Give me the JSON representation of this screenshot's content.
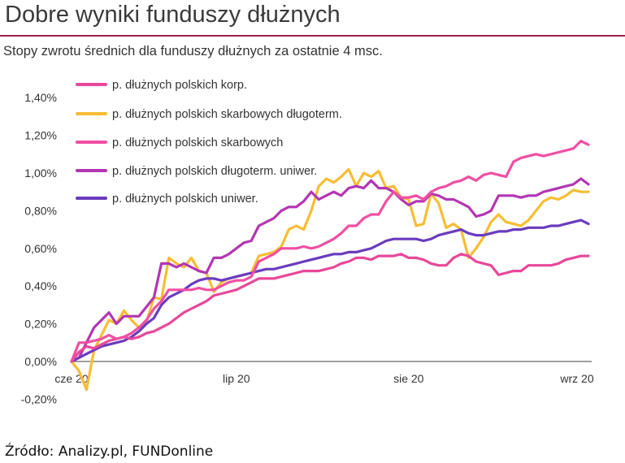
{
  "header": {
    "title": "Dobre wyniki funduszy dłużnych",
    "subtitle": "Stopy zwrotu średnich dla funduszy dłużnych za ostatnie 4 msc."
  },
  "footer": {
    "source": "Źródło: Analizy.pl, FUNDonline"
  },
  "chart_data": {
    "type": "line",
    "title": "",
    "xlabel": "",
    "ylabel": "",
    "ylim": [
      -0.2,
      1.4
    ],
    "y_ticks": [
      "-0,20%",
      "0,00%",
      "0,20%",
      "0,40%",
      "0,60%",
      "0,80%",
      "1,00%",
      "1,20%",
      "1,40%"
    ],
    "y_tick_values": [
      -0.2,
      0,
      0.2,
      0.4,
      0.6,
      0.8,
      1.0,
      1.2,
      1.4
    ],
    "x_ticks": [
      "cze 20",
      "lip 20",
      "sie 20",
      "wrz 20"
    ],
    "x_tick_index": [
      0,
      22,
      45,
      67
    ],
    "x_count": 70,
    "grid": false,
    "legend_position": "top-left",
    "series": [
      {
        "name": "p. dłużnych polskich korp.",
        "color": "#e8489a",
        "values": [
          0.0,
          0.05,
          0.08,
          0.07,
          0.09,
          0.11,
          0.12,
          0.13,
          0.12,
          0.13,
          0.15,
          0.16,
          0.18,
          0.2,
          0.23,
          0.26,
          0.28,
          0.3,
          0.32,
          0.35,
          0.36,
          0.37,
          0.38,
          0.4,
          0.42,
          0.44,
          0.44,
          0.44,
          0.45,
          0.46,
          0.47,
          0.48,
          0.48,
          0.48,
          0.49,
          0.5,
          0.52,
          0.53,
          0.55,
          0.55,
          0.54,
          0.56,
          0.56,
          0.56,
          0.57,
          0.55,
          0.55,
          0.54,
          0.52,
          0.51,
          0.51,
          0.55,
          0.57,
          0.56,
          0.53,
          0.52,
          0.51,
          0.46,
          0.47,
          0.48,
          0.48,
          0.51,
          0.51,
          0.51,
          0.51,
          0.52,
          0.54,
          0.55,
          0.56,
          0.56
        ]
      },
      {
        "name": "p. dłużnych polskich skarbowych długoterm.",
        "color": "#f7bd33",
        "values": [
          0.0,
          -0.05,
          -0.15,
          0.06,
          0.14,
          0.22,
          0.2,
          0.27,
          0.22,
          0.18,
          0.21,
          0.34,
          0.33,
          0.55,
          0.52,
          0.5,
          0.55,
          0.48,
          0.47,
          0.37,
          0.42,
          0.44,
          0.45,
          0.46,
          0.47,
          0.56,
          0.57,
          0.58,
          0.61,
          0.7,
          0.72,
          0.7,
          0.8,
          0.93,
          0.97,
          0.95,
          0.98,
          1.02,
          0.93,
          1.0,
          0.98,
          1.01,
          0.92,
          0.93,
          0.87,
          0.86,
          0.72,
          0.73,
          0.89,
          0.84,
          0.71,
          0.73,
          0.7,
          0.55,
          0.6,
          0.66,
          0.74,
          0.78,
          0.74,
          0.73,
          0.72,
          0.75,
          0.8,
          0.85,
          0.87,
          0.86,
          0.88,
          0.91,
          0.9,
          0.9
        ]
      },
      {
        "name": "p. dłużnych polskich skarbowych",
        "color": "#f04fa3",
        "values": [
          0.0,
          0.1,
          0.1,
          0.11,
          0.12,
          0.14,
          0.12,
          0.13,
          0.15,
          0.18,
          0.22,
          0.28,
          0.32,
          0.38,
          0.38,
          0.38,
          0.38,
          0.39,
          0.38,
          0.38,
          0.4,
          0.42,
          0.43,
          0.43,
          0.45,
          0.53,
          0.55,
          0.57,
          0.6,
          0.6,
          0.6,
          0.61,
          0.6,
          0.61,
          0.63,
          0.65,
          0.68,
          0.72,
          0.72,
          0.76,
          0.78,
          0.78,
          0.85,
          0.9,
          0.87,
          0.87,
          0.88,
          0.86,
          0.9,
          0.92,
          0.93,
          0.95,
          0.96,
          0.98,
          0.96,
          0.99,
          1.0,
          0.99,
          0.98,
          1.06,
          1.08,
          1.09,
          1.1,
          1.09,
          1.1,
          1.11,
          1.12,
          1.13,
          1.17,
          1.15
        ]
      },
      {
        "name": "p. dłużnych polskich długoterm. uniwer.",
        "color": "#b336b3",
        "values": [
          0.0,
          0.02,
          0.1,
          0.18,
          0.22,
          0.26,
          0.2,
          0.24,
          0.24,
          0.24,
          0.29,
          0.34,
          0.52,
          0.52,
          0.5,
          0.52,
          0.5,
          0.48,
          0.47,
          0.55,
          0.55,
          0.57,
          0.6,
          0.63,
          0.64,
          0.72,
          0.74,
          0.76,
          0.8,
          0.82,
          0.82,
          0.85,
          0.9,
          0.86,
          0.88,
          0.9,
          0.88,
          0.92,
          0.93,
          0.92,
          0.96,
          0.92,
          0.92,
          0.9,
          0.86,
          0.83,
          0.85,
          0.85,
          0.89,
          0.88,
          0.86,
          0.86,
          0.84,
          0.82,
          0.77,
          0.78,
          0.8,
          0.88,
          0.88,
          0.88,
          0.87,
          0.88,
          0.88,
          0.9,
          0.91,
          0.92,
          0.93,
          0.94,
          0.97,
          0.94
        ]
      },
      {
        "name": "p. dłużnych polskich uniwer.",
        "color": "#6a3cbf",
        "values": [
          0.0,
          0.02,
          0.04,
          0.06,
          0.08,
          0.09,
          0.1,
          0.11,
          0.13,
          0.16,
          0.2,
          0.23,
          0.3,
          0.34,
          0.36,
          0.38,
          0.41,
          0.43,
          0.44,
          0.44,
          0.43,
          0.44,
          0.45,
          0.46,
          0.47,
          0.48,
          0.49,
          0.49,
          0.5,
          0.51,
          0.52,
          0.53,
          0.54,
          0.55,
          0.56,
          0.57,
          0.57,
          0.58,
          0.58,
          0.59,
          0.6,
          0.62,
          0.64,
          0.65,
          0.65,
          0.65,
          0.65,
          0.64,
          0.65,
          0.67,
          0.68,
          0.69,
          0.7,
          0.68,
          0.67,
          0.67,
          0.68,
          0.69,
          0.69,
          0.7,
          0.7,
          0.71,
          0.71,
          0.71,
          0.72,
          0.72,
          0.73,
          0.74,
          0.75,
          0.73
        ]
      }
    ]
  }
}
